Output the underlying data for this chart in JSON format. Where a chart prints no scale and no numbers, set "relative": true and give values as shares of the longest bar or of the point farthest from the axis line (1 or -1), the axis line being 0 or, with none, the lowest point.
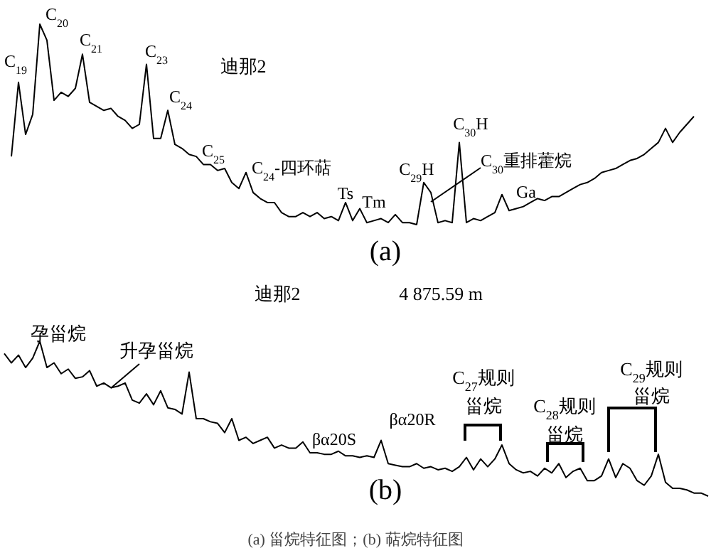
{
  "chart_data": [
    {
      "type": "line",
      "relative": true,
      "xlabel": "(a)",
      "color": "#000000",
      "categories": [
        null,
        null,
        null,
        null,
        null,
        null,
        null,
        null,
        null,
        null,
        null,
        null,
        null,
        null,
        null,
        null,
        null,
        null,
        null,
        null,
        null,
        null,
        null,
        null,
        null,
        null,
        null,
        null,
        null,
        null,
        null,
        null,
        null,
        null,
        null,
        null,
        null,
        null,
        null,
        null,
        null,
        null,
        null,
        null,
        null,
        null,
        null,
        null,
        null,
        null,
        null,
        null,
        null,
        null,
        null,
        null,
        null,
        null,
        null,
        null,
        null,
        null,
        null,
        null,
        null,
        null,
        null,
        null,
        null,
        null,
        null,
        null,
        null,
        null,
        null,
        null,
        null,
        null,
        null,
        null,
        null,
        null,
        null,
        null,
        null,
        null,
        null,
        null,
        null,
        null,
        null,
        null,
        null,
        null,
        null,
        null,
        null
      ],
      "values": [
        0.34,
        0.71,
        0.45,
        0.55,
        1,
        0.92,
        0.62,
        0.66,
        0.64,
        0.68,
        0.85,
        0.61,
        0.59,
        0.57,
        0.58,
        0.54,
        0.52,
        0.48,
        0.5,
        0.8,
        0.43,
        0.43,
        0.57,
        0.4,
        0.38,
        0.35,
        0.34,
        0.3,
        0.3,
        0.27,
        0.28,
        0.21,
        0.18,
        0.26,
        0.16,
        0.13,
        0.11,
        0.11,
        0.06,
        0.04,
        0.04,
        0.06,
        0.04,
        0.06,
        0.03,
        0.04,
        0.02,
        0.11,
        0.02,
        0.08,
        0.01,
        0.02,
        0.03,
        0.01,
        0.05,
        0.01,
        0.01,
        0,
        0.21,
        0.16,
        0.01,
        0.02,
        0.01,
        0.41,
        0.01,
        0.03,
        0.02,
        0.04,
        0.06,
        0.15,
        0.07,
        0.08,
        0.09,
        0.11,
        0.13,
        0.12,
        0.14,
        0.14,
        0.16,
        0.18,
        0.2,
        0.21,
        0.23,
        0.26,
        0.27,
        0.28,
        0.3,
        0.32,
        0.33,
        0.35,
        0.38,
        0.41,
        0.48,
        0.41,
        0.46,
        0.5,
        0.54
      ],
      "annotations": [
        "C$_{19}$",
        "C$_{20}$",
        "C$_{21}$",
        "C$_{23}$",
        "C$_{24}$",
        "C$_{25}$",
        "C$_{24}$-四环萜",
        "迪那2",
        "Ts",
        "Tm",
        "C$_{29}$H",
        "C$_{30}$H",
        "C$_{30}$重排藿烷",
        "Ga"
      ]
    },
    {
      "type": "line",
      "relative": true,
      "title": "迪那2",
      "subtitle": "4 875.59 m",
      "xlabel": "(b)",
      "color": "#000000",
      "categories": [
        null,
        null,
        null,
        null,
        null,
        null,
        null,
        null,
        null,
        null,
        null,
        null,
        null,
        null,
        null,
        null,
        null,
        null,
        null,
        null,
        null,
        null,
        null,
        null,
        null,
        null,
        null,
        null,
        null,
        null,
        null,
        null,
        null,
        null,
        null,
        null,
        null,
        null,
        null,
        null,
        null,
        null,
        null,
        null,
        null,
        null,
        null,
        null,
        null,
        null,
        null,
        null,
        null,
        null,
        null,
        null,
        null,
        null,
        null,
        null,
        null,
        null,
        null,
        null,
        null,
        null,
        null,
        null,
        null,
        null,
        null,
        null,
        null,
        null,
        null,
        null,
        null,
        null,
        null,
        null,
        null,
        null,
        null,
        null,
        null,
        null,
        null,
        null,
        null,
        null,
        null,
        null,
        null,
        null,
        null,
        null,
        null,
        null,
        null,
        null
      ],
      "values": [
        0.92,
        0.86,
        0.91,
        0.83,
        0.89,
        1,
        0.83,
        0.86,
        0.79,
        0.82,
        0.76,
        0.77,
        0.81,
        0.71,
        0.73,
        0.7,
        0.71,
        0.73,
        0.62,
        0.6,
        0.66,
        0.59,
        0.68,
        0.57,
        0.56,
        0.53,
        0.8,
        0.5,
        0.5,
        0.48,
        0.47,
        0.41,
        0.5,
        0.36,
        0.38,
        0.34,
        0.36,
        0.38,
        0.31,
        0.33,
        0.31,
        0.31,
        0.35,
        0.28,
        0.28,
        0.27,
        0.27,
        0.29,
        0.26,
        0.26,
        0.25,
        0.26,
        0.25,
        0.36,
        0.21,
        0.2,
        0.19,
        0.19,
        0.21,
        0.18,
        0.19,
        0.17,
        0.18,
        0.16,
        0.19,
        0.25,
        0.17,
        0.24,
        0.19,
        0.24,
        0.33,
        0.21,
        0.17,
        0.15,
        0.16,
        0.13,
        0.18,
        0.15,
        0.21,
        0.12,
        0.16,
        0.18,
        0.1,
        0.1,
        0.13,
        0.24,
        0.12,
        0.21,
        0.18,
        0.1,
        0.07,
        0.13,
        0.27,
        0.09,
        0.05,
        0.05,
        0.04,
        0.02,
        0.02,
        0
      ],
      "annotations": [
        "孕甾烷",
        "升孕甾烷",
        "βα20S",
        "βα20R",
        "C$_{27}$规则",
        "甾烷",
        "C$_{28}$规则",
        "甾烷",
        "C$_{29}$规则",
        "甾烷",
        "(a)  甾烷特征图；(b)  萜烷特征图"
      ]
    }
  ]
}
